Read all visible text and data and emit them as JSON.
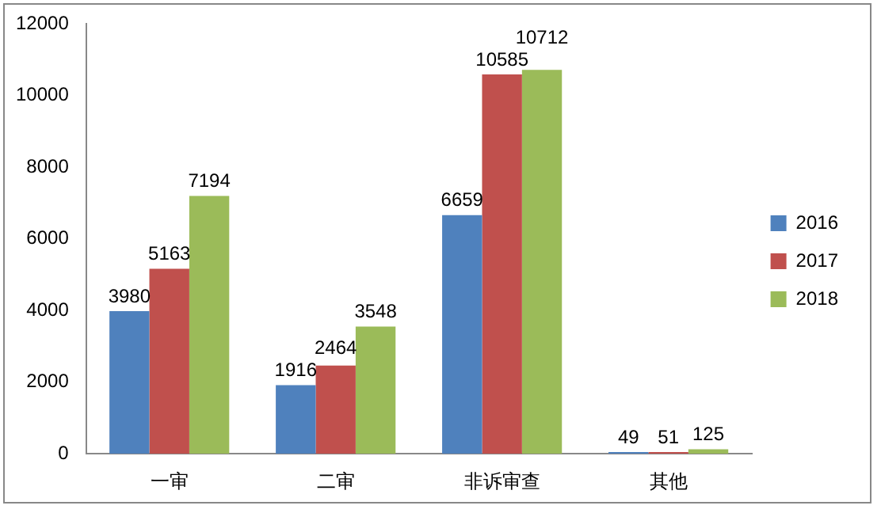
{
  "chart_data": {
    "type": "bar",
    "categories": [
      "一审",
      "二审",
      "非诉审查",
      "其他"
    ],
    "series": [
      {
        "name": "2016",
        "color": "#4f81bd",
        "values": [
          3980,
          1916,
          6659,
          49
        ]
      },
      {
        "name": "2017",
        "color": "#c0504d",
        "values": [
          5163,
          2464,
          10585,
          51
        ]
      },
      {
        "name": "2018",
        "color": "#9bbb59",
        "values": [
          7194,
          3548,
          10712,
          125
        ]
      }
    ],
    "ylim": [
      0,
      12000
    ],
    "yticks": [
      0,
      2000,
      4000,
      6000,
      8000,
      10000,
      12000
    ],
    "grid": false,
    "legend": "right",
    "data_labels": true
  }
}
